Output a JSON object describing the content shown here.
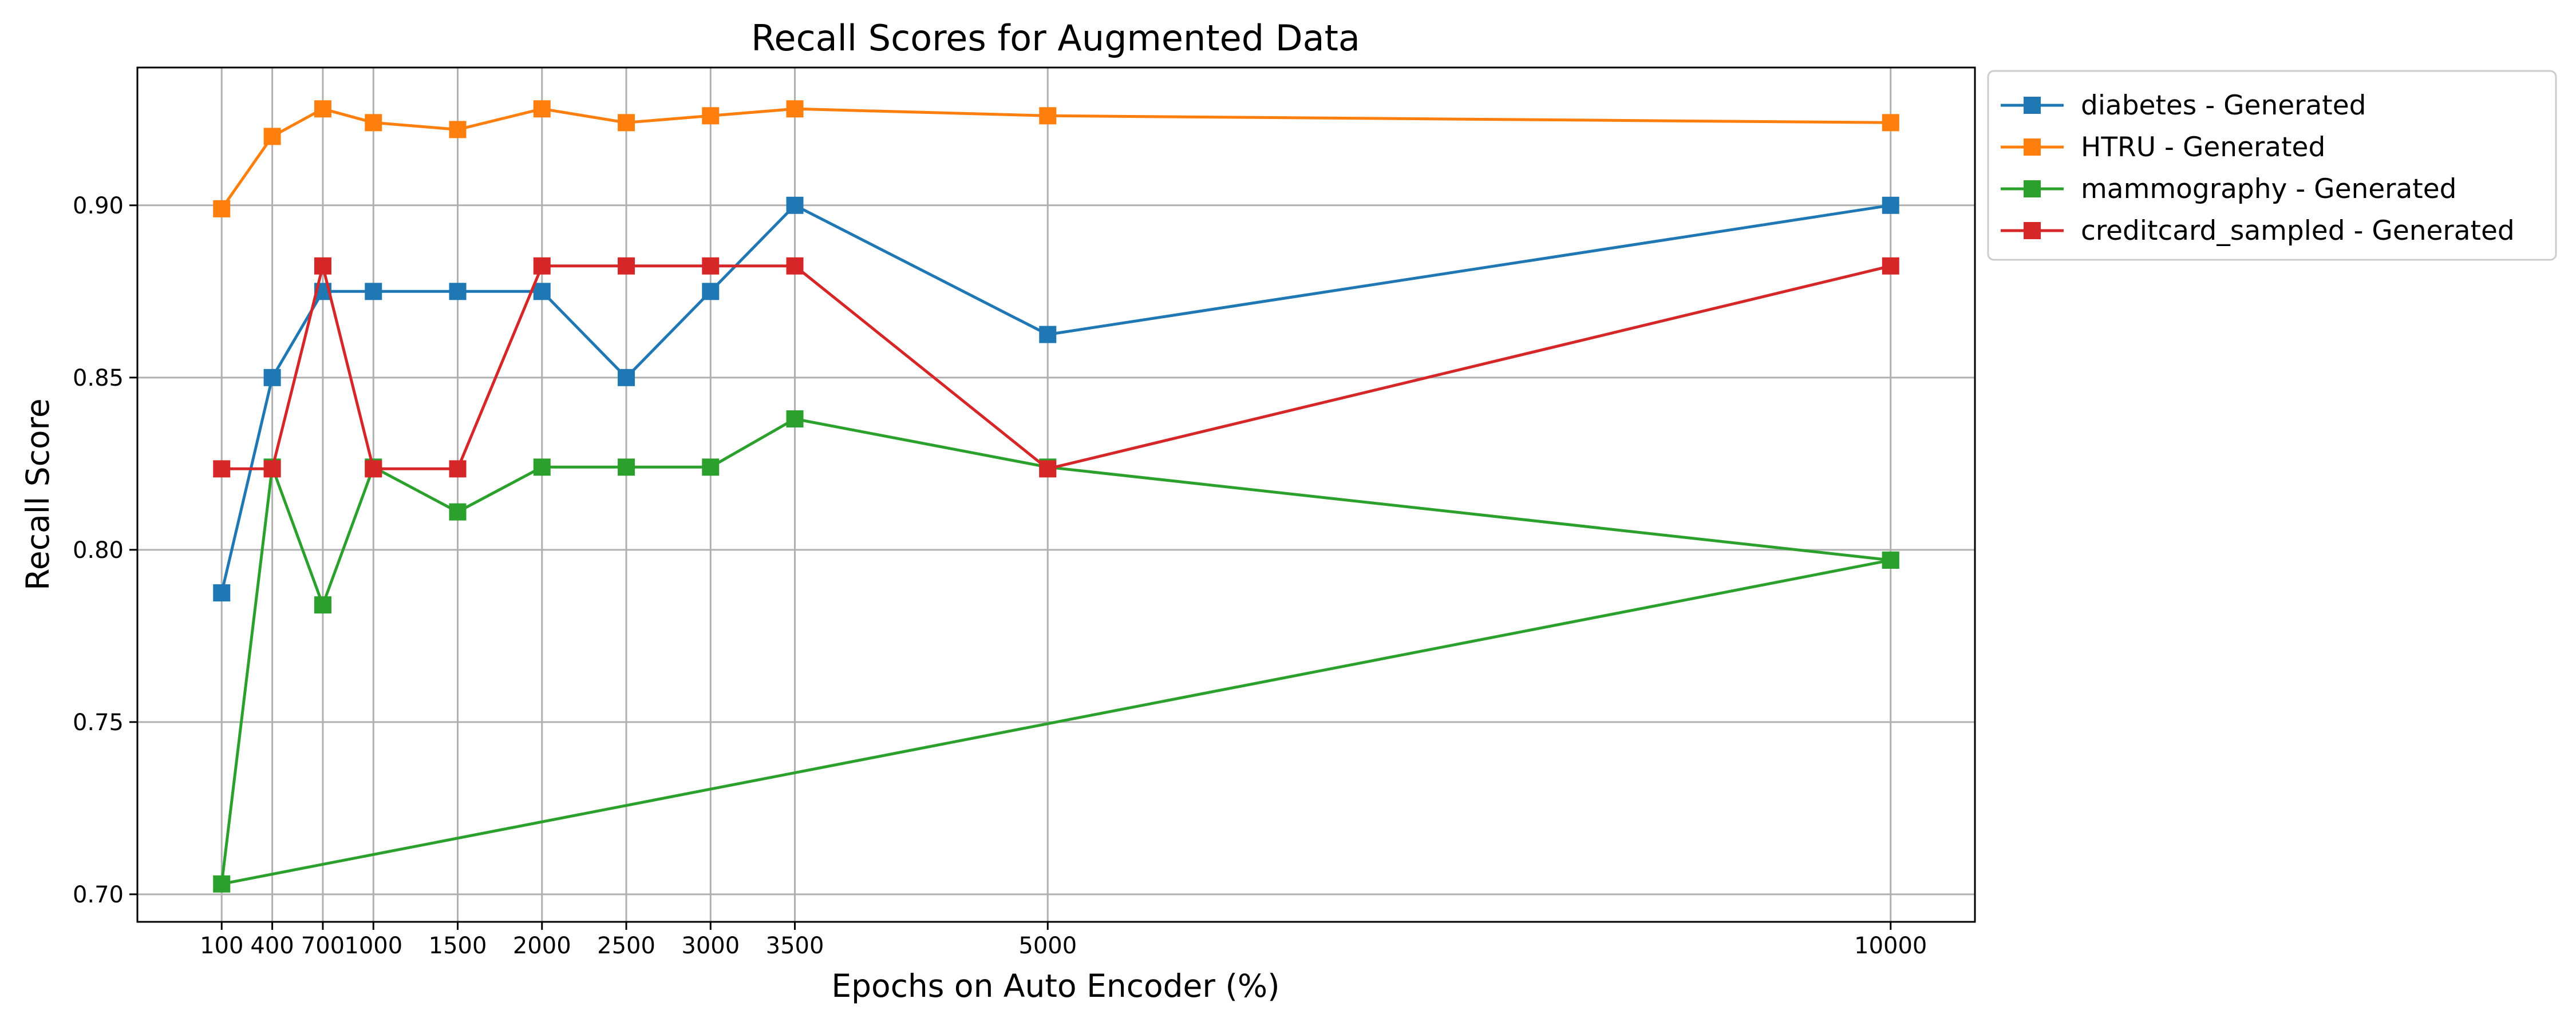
{
  "chart_data": {
    "type": "line",
    "title": "Recall Scores for Augmented Data",
    "xlabel": "Epochs on Auto Encoder (%)",
    "ylabel": "Recall Score",
    "x_ticks": [
      100,
      400,
      700,
      1000,
      1500,
      2000,
      2500,
      3000,
      3500,
      5000,
      10000
    ],
    "x_tick_labels": [
      "100",
      "400",
      "700",
      "1000",
      "1500",
      "2000",
      "2500",
      "3000",
      "3500",
      "5000",
      "10000"
    ],
    "y_ticks": [
      0.7,
      0.75,
      0.8,
      0.85,
      0.9
    ],
    "y_tick_labels": [
      "0.70",
      "0.75",
      "0.80",
      "0.85",
      "0.90"
    ],
    "xlim": [
      -400,
      10500
    ],
    "ylim": [
      0.692,
      0.94
    ],
    "grid": true,
    "legend_position": "outside-top-right",
    "series": [
      {
        "name": "diabetes - Generated",
        "color": "#1f77b4",
        "x": [
          100,
          400,
          700,
          1000,
          1500,
          2000,
          2500,
          3000,
          3500,
          5000,
          10000
        ],
        "y": [
          0.7875,
          0.85,
          0.875,
          0.875,
          0.875,
          0.875,
          0.85,
          0.875,
          0.9,
          0.8625,
          0.9
        ]
      },
      {
        "name": "HTRU - Generated",
        "color": "#ff7f0e",
        "x": [
          100,
          400,
          700,
          1000,
          1500,
          2000,
          2500,
          3000,
          3500,
          5000,
          10000
        ],
        "y": [
          0.899,
          0.92,
          0.928,
          0.924,
          0.922,
          0.928,
          0.924,
          0.926,
          0.928,
          0.926,
          0.924
        ]
      },
      {
        "name": "mammography - Generated",
        "color": "#2ca02c",
        "x": [
          10000,
          100,
          400,
          700,
          1000,
          1500,
          2000,
          2500,
          3000,
          3500,
          5000,
          10000
        ],
        "y": [
          0.797,
          0.703,
          0.824,
          0.784,
          0.824,
          0.811,
          0.824,
          0.824,
          0.824,
          0.838,
          0.824,
          0.797
        ]
      },
      {
        "name": "creditcard_sampled - Generated",
        "color": "#d62728",
        "x": [
          100,
          400,
          700,
          1000,
          1500,
          2000,
          2500,
          3000,
          3500,
          5000,
          10000
        ],
        "y": [
          0.8235,
          0.8235,
          0.8824,
          0.8235,
          0.8235,
          0.8824,
          0.8824,
          0.8824,
          0.8824,
          0.8235,
          0.8824
        ]
      }
    ]
  }
}
